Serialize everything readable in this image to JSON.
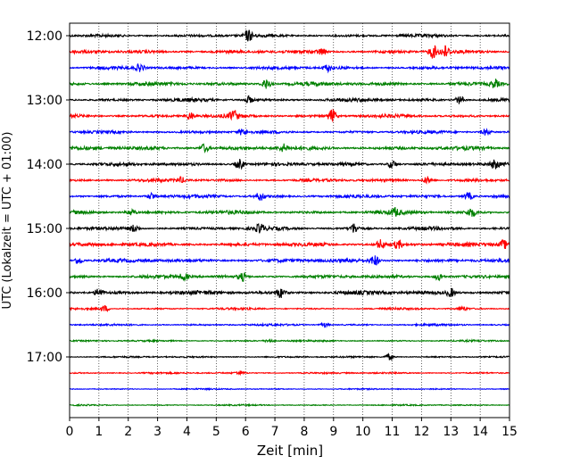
{
  "chart_data": {
    "type": "line",
    "title": "",
    "xlabel": "Zeit  [min]",
    "ylabel": "UTC (Lokalzeit = UTC + 01:00)",
    "xlim": [
      0,
      15
    ],
    "x_ticks": [
      "0",
      "1",
      "2",
      "3",
      "4",
      "5",
      "6",
      "7",
      "8",
      "9",
      "10",
      "11",
      "12",
      "13",
      "14",
      "15"
    ],
    "y_tick_labels": [
      "12:00",
      "13:00",
      "14:00",
      "15:00",
      "16:00",
      "17:00"
    ],
    "grid": "vertical dotted lines at each minute",
    "trace_interval_minutes": 15,
    "trace_colors_cycle": [
      "#000000",
      "#ff0000",
      "#0000ff",
      "#008000"
    ],
    "traces": [
      {
        "start": "12:00",
        "color": "#000000",
        "amplitude": 0.45,
        "events": [
          [
            6.1,
            1.4
          ]
        ]
      },
      {
        "start": "12:15",
        "color": "#ff0000",
        "amplitude": 0.5,
        "events": [
          [
            12.4,
            1.7
          ],
          [
            12.8,
            1.5
          ],
          [
            8.6,
            0.8
          ]
        ]
      },
      {
        "start": "12:30",
        "color": "#0000ff",
        "amplitude": 0.45,
        "events": [
          [
            2.4,
            0.9
          ],
          [
            8.8,
            0.8
          ]
        ]
      },
      {
        "start": "12:45",
        "color": "#008000",
        "amplitude": 0.55,
        "events": [
          [
            6.7,
            1.3
          ],
          [
            14.5,
            1.0
          ]
        ]
      },
      {
        "start": "13:00",
        "color": "#000000",
        "amplitude": 0.5,
        "events": [
          [
            6.1,
            0.9
          ],
          [
            13.3,
            1.0
          ]
        ]
      },
      {
        "start": "13:15",
        "color": "#ff0000",
        "amplitude": 0.5,
        "events": [
          [
            4.1,
            1.0
          ],
          [
            5.6,
            1.3
          ],
          [
            8.95,
            1.7
          ]
        ]
      },
      {
        "start": "13:30",
        "color": "#0000ff",
        "amplitude": 0.45,
        "events": [
          [
            5.9,
            0.8
          ],
          [
            14.2,
            0.8
          ]
        ]
      },
      {
        "start": "13:45",
        "color": "#008000",
        "amplitude": 0.55,
        "events": [
          [
            4.6,
            1.1
          ],
          [
            7.3,
            0.9
          ]
        ]
      },
      {
        "start": "14:00",
        "color": "#000000",
        "amplitude": 0.5,
        "events": [
          [
            5.8,
            1.3
          ],
          [
            11.0,
            1.0
          ],
          [
            14.5,
            1.0
          ]
        ]
      },
      {
        "start": "14:15",
        "color": "#ff0000",
        "amplitude": 0.45,
        "events": [
          [
            3.8,
            0.7
          ],
          [
            12.2,
            0.9
          ]
        ]
      },
      {
        "start": "14:30",
        "color": "#0000ff",
        "amplitude": 0.5,
        "events": [
          [
            2.8,
            0.9
          ],
          [
            6.5,
            1.0
          ],
          [
            13.6,
            1.0
          ]
        ]
      },
      {
        "start": "14:45",
        "color": "#008000",
        "amplitude": 0.55,
        "events": [
          [
            2.1,
            0.9
          ],
          [
            13.7,
            1.1
          ],
          [
            11.1,
            0.9
          ]
        ]
      },
      {
        "start": "15:00",
        "color": "#000000",
        "amplitude": 0.5,
        "events": [
          [
            2.2,
            0.9
          ],
          [
            6.5,
            1.1
          ],
          [
            9.7,
            1.2
          ]
        ]
      },
      {
        "start": "15:15",
        "color": "#ff0000",
        "amplitude": 0.55,
        "events": [
          [
            10.6,
            1.2
          ],
          [
            11.2,
            1.0
          ],
          [
            14.8,
            1.2
          ]
        ]
      },
      {
        "start": "15:30",
        "color": "#0000ff",
        "amplitude": 0.55,
        "events": [
          [
            0.3,
            0.9
          ],
          [
            10.4,
            1.4
          ]
        ]
      },
      {
        "start": "15:45",
        "color": "#008000",
        "amplitude": 0.5,
        "events": [
          [
            3.9,
            0.9
          ],
          [
            5.9,
            1.0
          ],
          [
            12.6,
            1.0
          ]
        ]
      },
      {
        "start": "16:00",
        "color": "#000000",
        "amplitude": 0.6,
        "events": [
          [
            1.0,
            1.1
          ],
          [
            7.2,
            1.2
          ],
          [
            13.0,
            1.1
          ]
        ]
      },
      {
        "start": "16:15",
        "color": "#ff0000",
        "amplitude": 0.3,
        "events": [
          [
            1.2,
            0.8
          ],
          [
            13.4,
            0.5
          ]
        ]
      },
      {
        "start": "16:30",
        "color": "#0000ff",
        "amplitude": 0.3,
        "events": [
          [
            8.7,
            0.5
          ]
        ]
      },
      {
        "start": "16:45",
        "color": "#008000",
        "amplitude": 0.25,
        "events": [
          [
            6.8,
            0.4
          ]
        ]
      },
      {
        "start": "17:00",
        "color": "#000000",
        "amplitude": 0.25,
        "events": [
          [
            10.9,
            0.8
          ]
        ]
      },
      {
        "start": "17:15",
        "color": "#ff0000",
        "amplitude": 0.25,
        "events": [
          [
            5.8,
            0.5
          ]
        ]
      },
      {
        "start": "17:30",
        "color": "#0000ff",
        "amplitude": 0.2,
        "events": []
      },
      {
        "start": "17:45",
        "color": "#008000",
        "amplitude": 0.2,
        "events": []
      }
    ]
  }
}
